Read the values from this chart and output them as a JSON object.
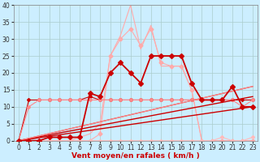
{
  "xlabel": "Vent moyen/en rafales ( km/h )",
  "xlim": [
    -0.5,
    23.5
  ],
  "ylim": [
    0,
    40
  ],
  "yticks": [
    0,
    5,
    10,
    15,
    20,
    25,
    30,
    35,
    40
  ],
  "xticks": [
    0,
    1,
    2,
    3,
    4,
    5,
    6,
    7,
    8,
    9,
    10,
    11,
    12,
    13,
    14,
    15,
    16,
    17,
    18,
    19,
    20,
    21,
    22,
    23
  ],
  "bg_color": "#cceeff",
  "grid_color": "#aacccc",
  "series": [
    {
      "name": "rafales_light_pink_dotted",
      "x": [
        0,
        1,
        2,
        3,
        4,
        5,
        6,
        7,
        8,
        9,
        10,
        11,
        12,
        13,
        14,
        15,
        16,
        17,
        18,
        19,
        20,
        21,
        22,
        23
      ],
      "y": [
        0,
        0,
        0,
        0,
        0,
        0,
        1,
        2,
        5,
        25,
        31,
        40,
        27,
        34,
        22,
        22,
        22,
        15,
        0,
        0,
        0,
        0,
        0,
        0
      ],
      "color": "#ffaaaa",
      "lw": 0.8,
      "marker": null,
      "ms": 0,
      "ls": "-",
      "zorder": 2
    },
    {
      "name": "vent_moy_light_pink_with_markers",
      "x": [
        0,
        1,
        2,
        3,
        4,
        5,
        6,
        7,
        8,
        9,
        10,
        11,
        12,
        13,
        14,
        15,
        16,
        17,
        18,
        19,
        20,
        21,
        22,
        23
      ],
      "y": [
        0,
        0,
        0,
        0,
        0,
        0,
        0,
        0,
        2,
        25,
        30,
        33,
        28,
        33,
        23,
        22,
        22,
        15,
        0,
        0,
        0,
        0,
        0,
        0
      ],
      "color": "#ffaaaa",
      "lw": 0.8,
      "marker": "D",
      "ms": 2.5,
      "ls": "-",
      "zorder": 2
    },
    {
      "name": "dark_red_main_diamonds",
      "x": [
        0,
        1,
        2,
        3,
        4,
        5,
        6,
        7,
        8,
        9,
        10,
        11,
        12,
        13,
        14,
        15,
        16,
        17,
        18,
        19,
        20,
        21,
        22,
        23
      ],
      "y": [
        0,
        0,
        0,
        1,
        1,
        1,
        1,
        14,
        13,
        20,
        23,
        20,
        17,
        25,
        25,
        25,
        25,
        17,
        12,
        12,
        12,
        16,
        10,
        10
      ],
      "color": "#cc0000",
      "lw": 1.3,
      "marker": "D",
      "ms": 3,
      "ls": "-",
      "zorder": 5
    },
    {
      "name": "straight_line_1_dark",
      "x": [
        0,
        23
      ],
      "y": [
        0,
        10
      ],
      "color": "#cc0000",
      "lw": 1.0,
      "marker": null,
      "ms": 0,
      "ls": "-",
      "zorder": 3
    },
    {
      "name": "straight_line_2_dark",
      "x": [
        0,
        23
      ],
      "y": [
        0,
        13
      ],
      "color": "#cc0000",
      "lw": 1.0,
      "marker": null,
      "ms": 0,
      "ls": "-",
      "zorder": 3
    },
    {
      "name": "straight_line_3_medium",
      "x": [
        0,
        23
      ],
      "y": [
        0,
        16
      ],
      "color": "#dd4444",
      "lw": 0.9,
      "marker": null,
      "ms": 0,
      "ls": "-",
      "zorder": 3
    },
    {
      "name": "straight_line_4_light",
      "x": [
        0,
        23
      ],
      "y": [
        0,
        16
      ],
      "color": "#ff8888",
      "lw": 0.8,
      "marker": null,
      "ms": 0,
      "ls": "-",
      "zorder": 3
    },
    {
      "name": "horizontal_dark_with_markers",
      "x": [
        0,
        1,
        2,
        3,
        4,
        5,
        6,
        7,
        8,
        9,
        10,
        11,
        12,
        13,
        14,
        15,
        16,
        17,
        18,
        19,
        20,
        21,
        22,
        23
      ],
      "y": [
        0,
        12,
        12,
        12,
        12,
        12,
        12,
        13,
        12,
        12,
        12,
        12,
        12,
        12,
        12,
        12,
        12,
        12,
        12,
        12,
        12,
        12,
        12,
        12
      ],
      "color": "#cc0000",
      "lw": 0.8,
      "marker": "D",
      "ms": 2,
      "ls": "-",
      "zorder": 2
    },
    {
      "name": "horizontal_light_with_markers",
      "x": [
        0,
        1,
        2,
        3,
        4,
        5,
        6,
        7,
        8,
        9,
        10,
        11,
        12,
        13,
        14,
        15,
        16,
        17,
        18,
        19,
        20,
        21,
        22,
        23
      ],
      "y": [
        0,
        10,
        12,
        12,
        12,
        12,
        12,
        12,
        12,
        12,
        12,
        12,
        12,
        12,
        12,
        12,
        12,
        12,
        12,
        12,
        12,
        12,
        10,
        12
      ],
      "color": "#ff8888",
      "lw": 0.8,
      "marker": "D",
      "ms": 2,
      "ls": "-",
      "zorder": 2
    },
    {
      "name": "light_pink_bottom_flat",
      "x": [
        0,
        1,
        2,
        3,
        4,
        5,
        6,
        7,
        8,
        9,
        10,
        11,
        12,
        13,
        14,
        15,
        16,
        17,
        18,
        19,
        20,
        21,
        22,
        23
      ],
      "y": [
        0,
        0,
        0,
        0,
        0,
        0,
        0,
        0,
        0,
        0,
        0,
        0,
        0,
        0,
        0,
        0,
        0,
        0,
        0,
        0,
        1,
        0,
        0,
        1
      ],
      "color": "#ffbbbb",
      "lw": 0.8,
      "marker": "D",
      "ms": 2,
      "ls": "-",
      "zorder": 2
    }
  ]
}
